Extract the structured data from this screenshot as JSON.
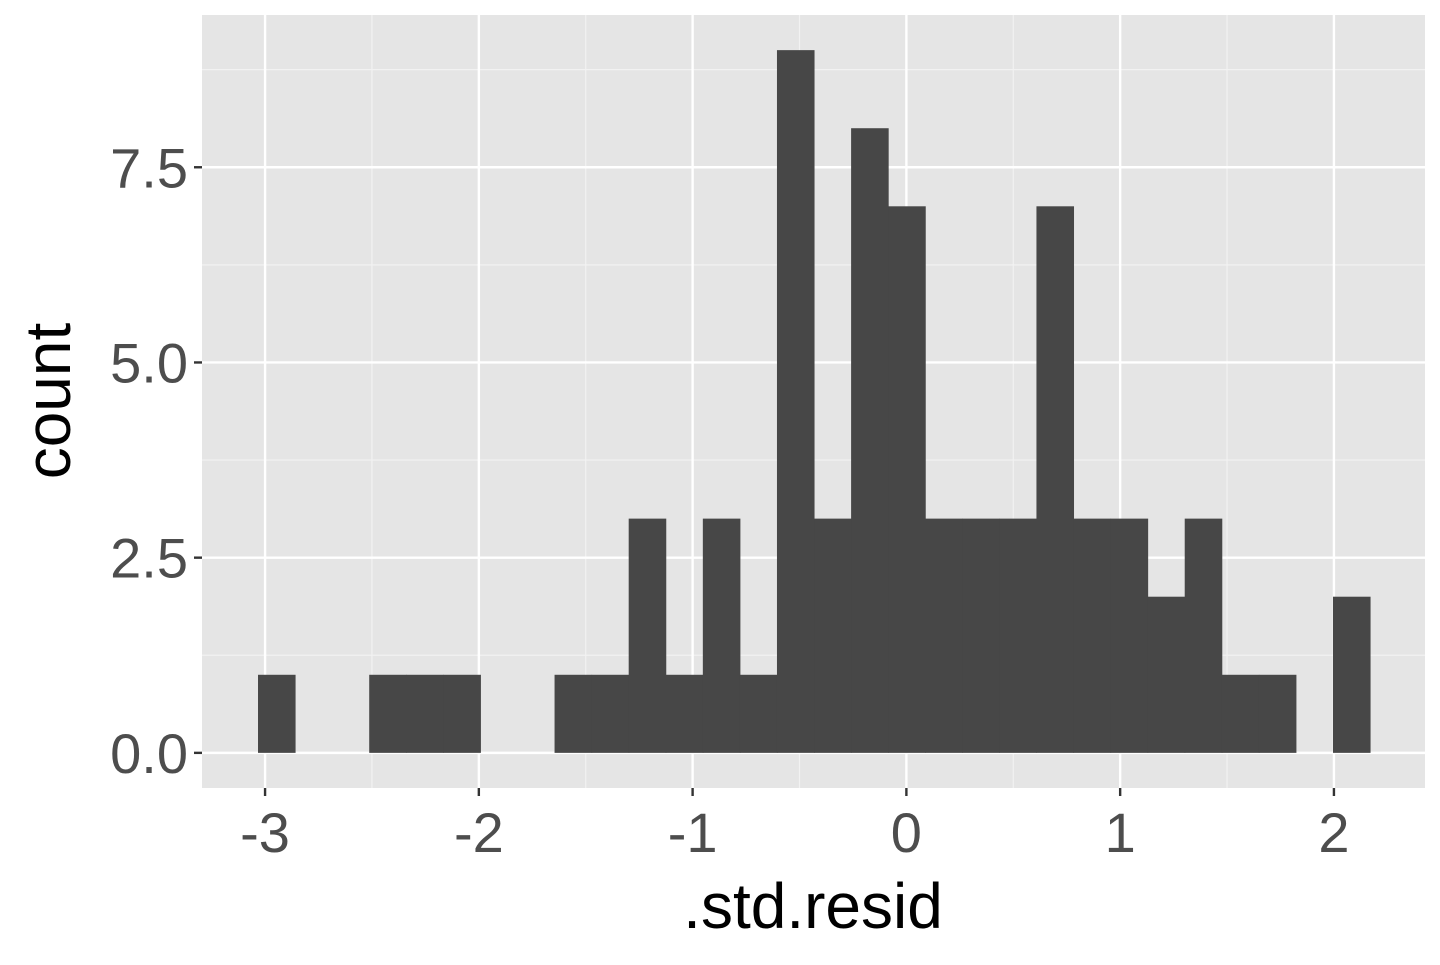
{
  "chart_data": {
    "type": "bar",
    "subtype": "histogram",
    "xlabel": ".std.resid",
    "ylabel": "count",
    "bins": 30,
    "bin_start": -3.033,
    "bin_width": 0.1734,
    "counts": [
      1,
      0,
      0,
      1,
      1,
      1,
      0,
      0,
      1,
      1,
      3,
      1,
      3,
      1,
      9,
      3,
      8,
      7,
      3,
      3,
      3,
      7,
      3,
      3,
      2,
      3,
      1,
      1,
      0,
      2
    ],
    "xlim": [
      -3.295,
      2.426
    ],
    "ylim": [
      -0.45,
      9.45
    ],
    "x_ticks": [
      -3,
      -2,
      -1,
      0,
      1,
      2
    ],
    "x_tick_labels": [
      "-3",
      "-2",
      "-1",
      "0",
      "1",
      "2"
    ],
    "y_ticks": [
      0,
      2.5,
      5,
      7.5
    ],
    "y_tick_labels": [
      "0.0",
      "2.5",
      "5.0",
      "7.5"
    ],
    "grid": true,
    "colors": {
      "panel": "#e5e5e5",
      "bar": "#474747",
      "grid": "#ffffff",
      "tick_text": "#4d4d4d"
    }
  }
}
